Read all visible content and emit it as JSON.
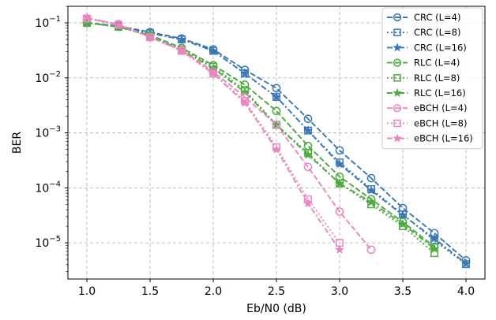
{
  "chart_data": {
    "type": "line",
    "title": "",
    "xlabel": "Eb/N0 (dB)",
    "ylabel": "BER",
    "xlim": [
      0.85,
      4.15
    ],
    "ylim": [
      2.2e-06,
      0.2
    ],
    "yscale": "log",
    "grid": true,
    "legend_position": "top-right",
    "x_ticks": [
      1.0,
      1.5,
      2.0,
      2.5,
      3.0,
      3.5,
      4.0
    ],
    "x_tick_labels": [
      "1.0",
      "1.5",
      "2.0",
      "2.5",
      "3.0",
      "3.5",
      "4.0"
    ],
    "y_ticks": [
      {
        "value": 0.1,
        "base": "10",
        "exp": "−1"
      },
      {
        "value": 0.01,
        "base": "10",
        "exp": "−2"
      },
      {
        "value": 0.001,
        "base": "10",
        "exp": "−3"
      },
      {
        "value": 0.0001,
        "base": "10",
        "exp": "−4"
      },
      {
        "value": 1e-05,
        "base": "10",
        "exp": "−5"
      }
    ],
    "series": [
      {
        "name": "CRC (L=4)",
        "color": "#3a78b5",
        "dash": "dashed",
        "marker": "circle",
        "x": [
          1.0,
          1.25,
          1.5,
          1.75,
          2.0,
          2.25,
          2.5,
          2.75,
          3.0,
          3.25,
          3.5,
          3.75,
          4.0
        ],
        "y": [
          0.1,
          0.088,
          0.068,
          0.052,
          0.033,
          0.014,
          0.0065,
          0.0018,
          0.00048,
          0.00015,
          4.3e-05,
          1.5e-05,
          4.8e-06
        ]
      },
      {
        "name": "CRC (L=8)",
        "color": "#3a78b5",
        "dash": "dotted",
        "marker": "square",
        "x": [
          1.0,
          1.25,
          1.5,
          1.75,
          2.0,
          2.25,
          2.5,
          2.75,
          3.0,
          3.25,
          3.5,
          3.75,
          4.0
        ],
        "y": [
          0.1,
          0.085,
          0.065,
          0.05,
          0.031,
          0.012,
          0.0045,
          0.0011,
          0.00029,
          9.5e-05,
          3.3e-05,
          1.1e-05,
          4.1e-06
        ]
      },
      {
        "name": "CRC (L=16)",
        "color": "#3a78b5",
        "dash": "dashdot",
        "marker": "star",
        "x": [
          1.0,
          1.25,
          1.5,
          1.75,
          2.0,
          2.25,
          2.5,
          2.75,
          3.0,
          3.25,
          3.5,
          3.75,
          4.0
        ],
        "y": [
          0.1,
          0.085,
          0.065,
          0.05,
          0.031,
          0.012,
          0.0045,
          0.0011,
          0.00027,
          9e-05,
          3.2e-05,
          1.2e-05,
          4.2e-06
        ]
      },
      {
        "name": "RLC (L=4)",
        "color": "#4caa3e",
        "dash": "dashed",
        "marker": "circle",
        "x": [
          1.0,
          1.25,
          1.5,
          1.75,
          2.0,
          2.25,
          2.5,
          2.75,
          3.0,
          3.25,
          3.5,
          3.75
        ],
        "y": [
          0.1,
          0.085,
          0.06,
          0.035,
          0.017,
          0.0075,
          0.0025,
          0.00058,
          0.00016,
          6.2e-05,
          2.4e-05,
          8.5e-06
        ]
      },
      {
        "name": "RLC (L=8)",
        "color": "#4caa3e",
        "dash": "dotted",
        "marker": "square",
        "x": [
          1.0,
          1.25,
          1.5,
          1.75,
          2.0,
          2.25,
          2.5,
          2.75,
          3.0,
          3.25,
          3.5,
          3.75
        ],
        "y": [
          0.1,
          0.085,
          0.058,
          0.033,
          0.016,
          0.006,
          0.0014,
          0.00043,
          0.00012,
          5e-05,
          2e-05,
          6.5e-06
        ]
      },
      {
        "name": "RLC (L=16)",
        "color": "#4caa3e",
        "dash": "dashdot",
        "marker": "star",
        "x": [
          1.0,
          1.25,
          1.5,
          1.75,
          2.0,
          2.25,
          2.5,
          2.75,
          3.0,
          3.25,
          3.5,
          3.75
        ],
        "y": [
          0.1,
          0.085,
          0.058,
          0.032,
          0.015,
          0.0055,
          0.0014,
          0.0004,
          0.00012,
          5.5e-05,
          2.2e-05,
          7.8e-06
        ]
      },
      {
        "name": "eBCH (L=4)",
        "color": "#ea85c1",
        "dash": "dashed",
        "marker": "circle",
        "x": [
          1.0,
          1.25,
          1.5,
          1.75,
          2.0,
          2.25,
          2.5,
          2.75,
          3.0,
          3.25
        ],
        "y": [
          0.12,
          0.095,
          0.055,
          0.032,
          0.013,
          0.0045,
          0.0014,
          0.00024,
          3.7e-05,
          7.5e-06
        ]
      },
      {
        "name": "eBCH (L=8)",
        "color": "#ea85c1",
        "dash": "dotted",
        "marker": "square",
        "x": [
          1.0,
          1.25,
          1.5,
          1.75,
          2.0,
          2.25,
          2.5,
          2.75,
          3.0
        ],
        "y": [
          0.12,
          0.092,
          0.055,
          0.031,
          0.012,
          0.0038,
          0.00055,
          6.2e-05,
          1e-05
        ]
      },
      {
        "name": "eBCH (L=16)",
        "color": "#ea85c1",
        "dash": "dashdot",
        "marker": "star",
        "x": [
          1.0,
          1.25,
          1.5,
          1.75,
          2.0,
          2.25,
          2.5,
          2.75,
          3.0
        ],
        "y": [
          0.125,
          0.092,
          0.055,
          0.031,
          0.012,
          0.0035,
          0.0005,
          5.2e-05,
          7.5e-06
        ]
      }
    ]
  }
}
